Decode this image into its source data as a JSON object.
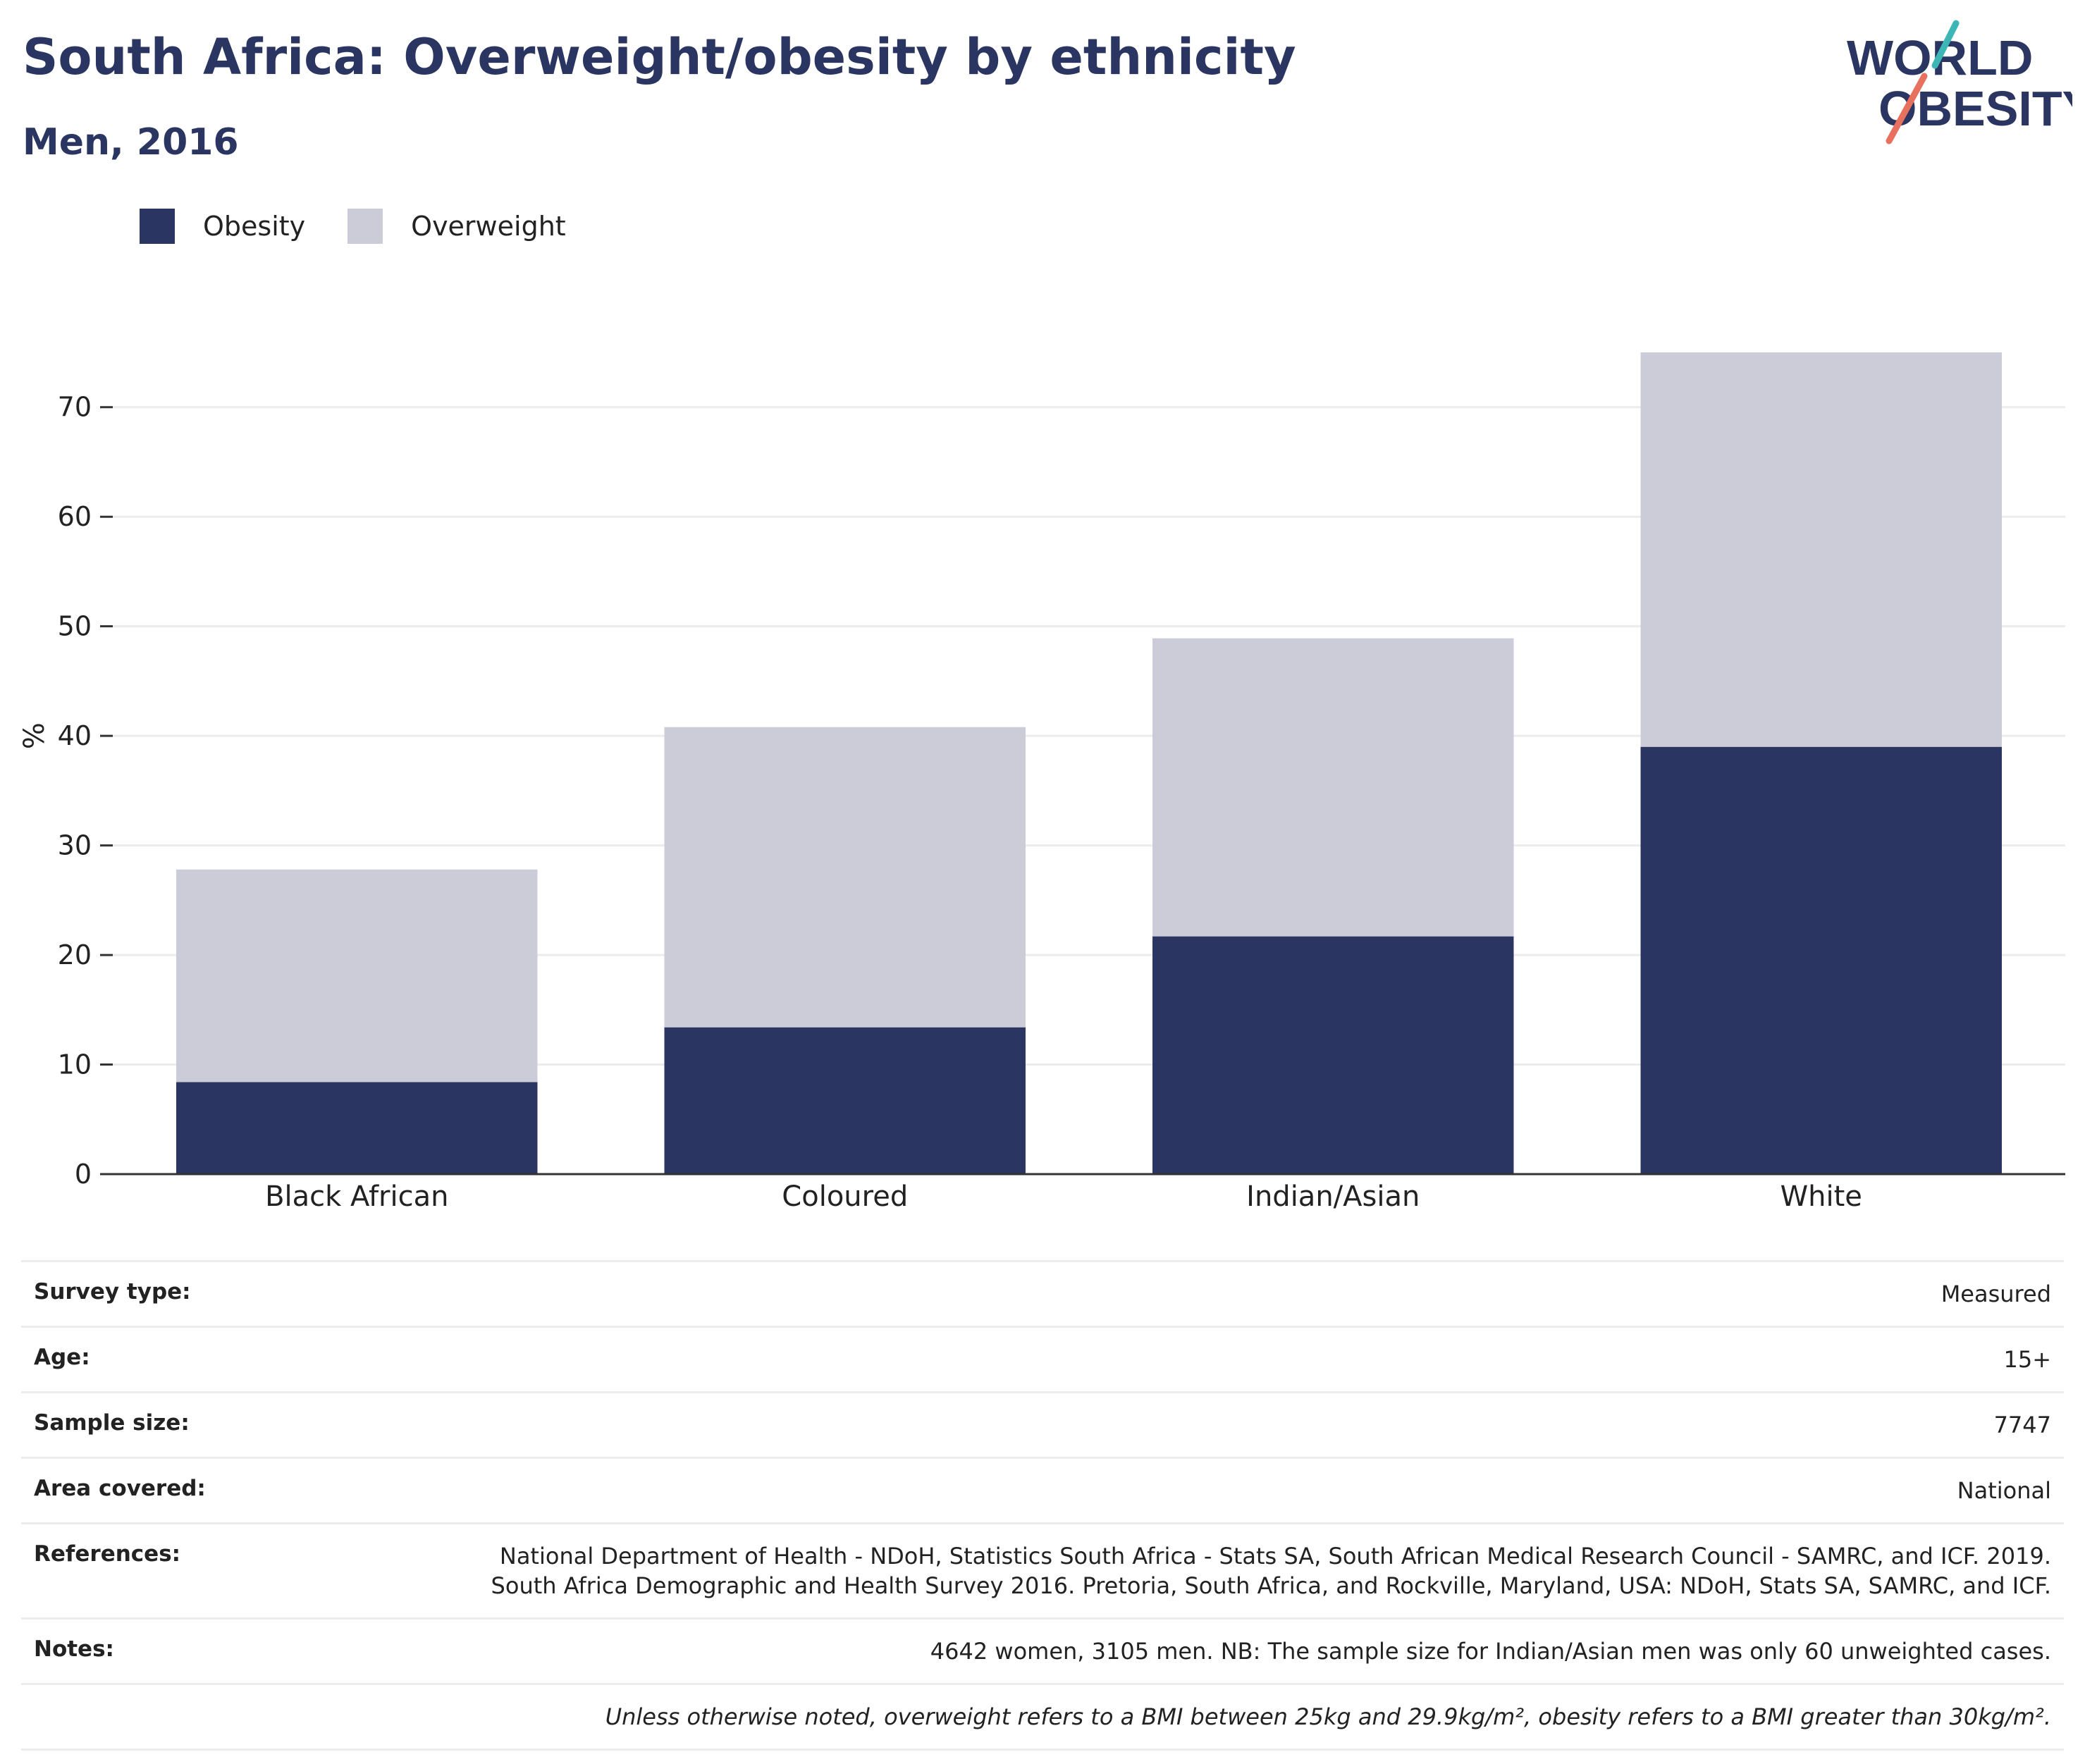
{
  "header": {
    "title": "South Africa: Overweight/obesity by ethnicity",
    "subtitle": "Men, 2016"
  },
  "logo": {
    "line1": "WORLD",
    "line2": "OBESITY",
    "accent_teal": "#3cb7b5",
    "accent_coral": "#e8705f"
  },
  "colors": {
    "obesity": "#2a3562",
    "overweight": "#cbccd8"
  },
  "legend": {
    "items": [
      {
        "label": "Obesity"
      },
      {
        "label": "Overweight"
      }
    ]
  },
  "chart_data": {
    "type": "bar",
    "stacked": true,
    "categories": [
      "Black African",
      "Coloured",
      "Indian/Asian",
      "White"
    ],
    "series": [
      {
        "name": "Obesity",
        "values": [
          8.4,
          13.4,
          21.7,
          39.0
        ]
      },
      {
        "name": "Overweight",
        "values": [
          19.4,
          27.4,
          27.2,
          36.0
        ]
      }
    ],
    "ylabel": "%",
    "ylim": [
      0,
      75
    ],
    "yticks": [
      0,
      10,
      20,
      30,
      40,
      50,
      60,
      70
    ],
    "grid": true,
    "legend_position": "top-left"
  },
  "meta": {
    "rows": [
      {
        "label": "Survey type:",
        "value": "Measured"
      },
      {
        "label": "Age:",
        "value": "15+"
      },
      {
        "label": "Sample size:",
        "value": "7747"
      },
      {
        "label": "Area covered:",
        "value": "National"
      },
      {
        "label": "References:",
        "value": "National Department of Health - NDoH, Statistics South Africa - Stats SA, South African Medical Research Council - SAMRC, and ICF. 2019. South Africa Demographic and Health Survey 2016. Pretoria, South Africa, and Rockville, Maryland, USA: NDoH, Stats SA, SAMRC, and ICF."
      },
      {
        "label": "Notes:",
        "value": "4642 women, 3105 men. NB: The sample size for Indian/Asian men was only 60 unweighted cases."
      }
    ],
    "footnote": "Unless otherwise noted, overweight refers to a BMI between 25kg and 29.9kg/m², obesity refers to a BMI greater than 30kg/m²."
  }
}
